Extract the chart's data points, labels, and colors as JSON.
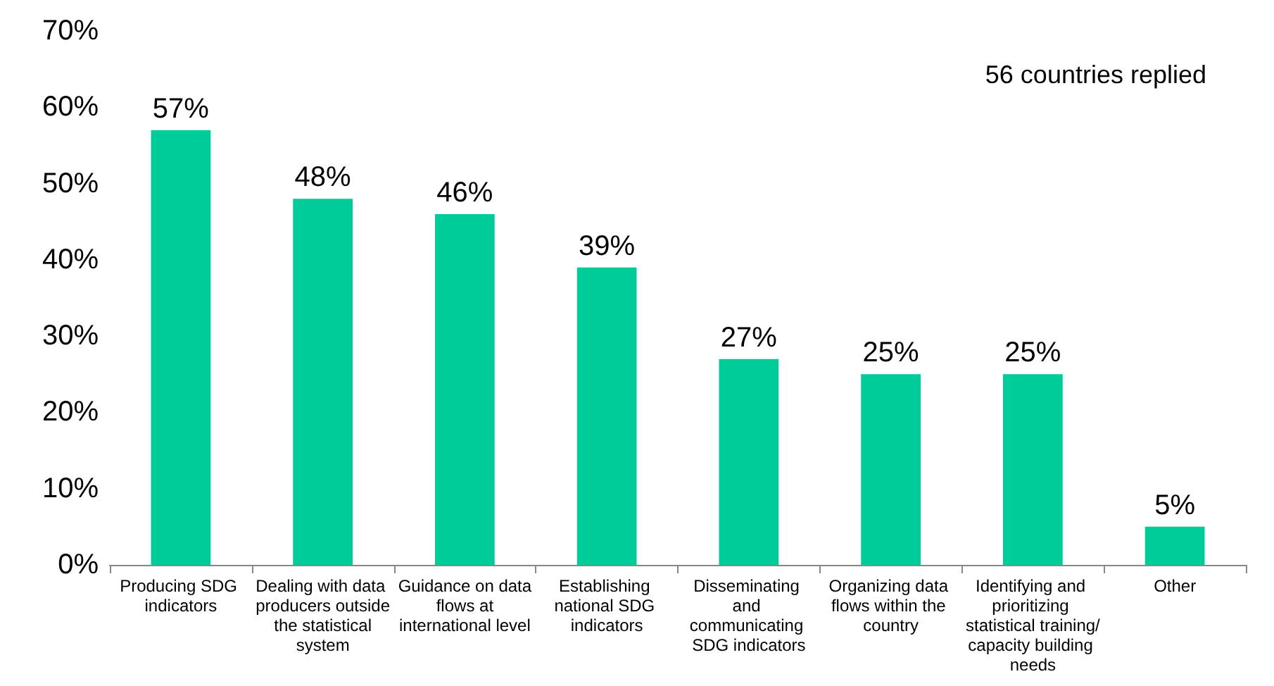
{
  "chart_data": {
    "type": "bar",
    "categories": [
      "Producing SDG indicators",
      "Dealing with data producers outside the statistical system",
      "Guidance on data flows at international level",
      "Establishing national SDG indicators",
      "Disseminating and communicating SDG indicators",
      "Organizing data flows within the country",
      "Identifying and prioritizing statistical training/capacity building needs",
      "Other"
    ],
    "values": [
      57,
      48,
      46,
      39,
      27,
      25,
      25,
      5
    ],
    "value_labels": [
      "57%",
      "48%",
      "46%",
      "39%",
      "27%",
      "25%",
      "25%",
      "5%"
    ],
    "color": "#00cc99",
    "ylim": [
      0,
      70
    ],
    "yticks": [
      {
        "value": 0,
        "label": "0%"
      },
      {
        "value": 10,
        "label": "10%"
      },
      {
        "value": 20,
        "label": "20%"
      },
      {
        "value": 30,
        "label": "30%"
      },
      {
        "value": 40,
        "label": "40%"
      },
      {
        "value": 50,
        "label": "50%"
      },
      {
        "value": 60,
        "label": "60%"
      },
      {
        "value": 70,
        "label": "70%"
      }
    ],
    "annotations": [
      "56 countries replied"
    ],
    "grid": false
  }
}
